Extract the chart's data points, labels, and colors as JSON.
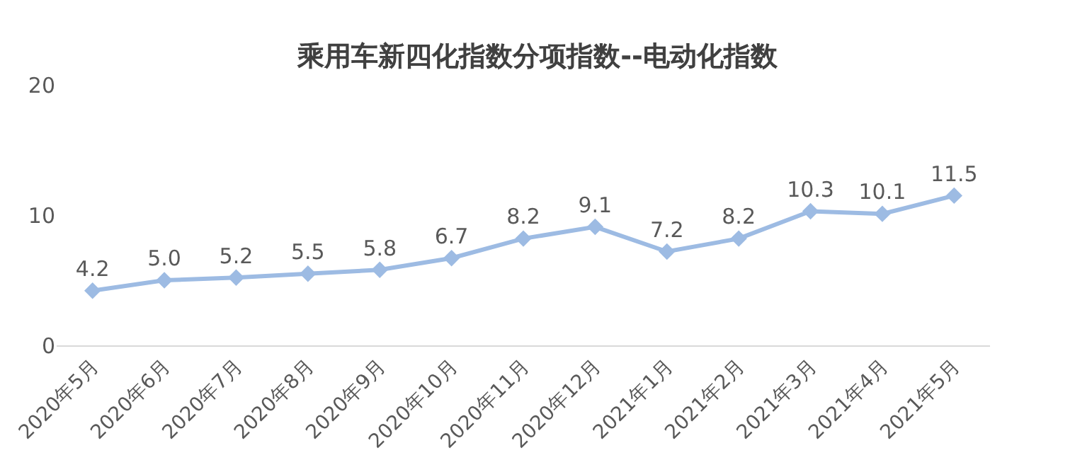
{
  "chart_data": {
    "type": "line",
    "title": "乘用车新四化指数分项指数--电动化指数",
    "categories": [
      "2020年5月",
      "2020年6月",
      "2020年7月",
      "2020年8月",
      "2020年9月",
      "2020年10月",
      "2020年11月",
      "2020年12月",
      "2021年1月",
      "2021年2月",
      "2021年3月",
      "2021年4月",
      "2021年5月"
    ],
    "series": [
      {
        "color": "#9dbbe3",
        "values": [
          4.2,
          5.0,
          5.2,
          5.5,
          5.8,
          6.7,
          8.2,
          9.1,
          7.2,
          8.2,
          10.3,
          10.1,
          11.5
        ]
      }
    ],
    "value_labels": [
      "4.2",
      "5.0",
      "5.2",
      "5.5",
      "5.8",
      "6.7",
      "8.2",
      "9.1",
      "7.2",
      "8.2",
      "10.3",
      "10.1",
      "11.5"
    ],
    "ylim": [
      0,
      20
    ],
    "yticks": [
      0,
      10,
      20
    ],
    "legend": false,
    "marker": "diamond",
    "line_style": "solid"
  }
}
